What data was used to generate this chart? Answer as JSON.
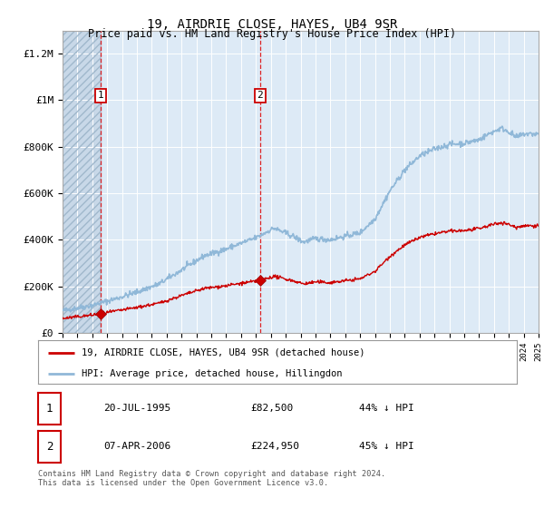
{
  "title": "19, AIRDRIE CLOSE, HAYES, UB4 9SR",
  "subtitle": "Price paid vs. HM Land Registry's House Price Index (HPI)",
  "ylim": [
    0,
    1300000
  ],
  "yticks": [
    0,
    200000,
    400000,
    600000,
    800000,
    1000000,
    1200000
  ],
  "ytick_labels": [
    "£0",
    "£200K",
    "£400K",
    "£600K",
    "£800K",
    "£1M",
    "£1.2M"
  ],
  "xmin": 1993,
  "xmax": 2025,
  "sale1_year": 1995.55,
  "sale1_price": 82500,
  "sale2_year": 2006.27,
  "sale2_price": 224950,
  "hpi_line_color": "#90b8d8",
  "sale_line_color": "#cc0000",
  "plot_bg_color": "#ddeaf6",
  "hatch_bg_color": "#c8d8e8",
  "legend_entries": [
    "19, AIRDRIE CLOSE, HAYES, UB4 9SR (detached house)",
    "HPI: Average price, detached house, Hillingdon"
  ],
  "table_rows": [
    {
      "num": "1",
      "date": "20-JUL-1995",
      "price": "£82,500",
      "hpi": "44% ↓ HPI"
    },
    {
      "num": "2",
      "date": "07-APR-2006",
      "price": "£224,950",
      "hpi": "45% ↓ HPI"
    }
  ],
  "footnote": "Contains HM Land Registry data © Crown copyright and database right 2024.\nThis data is licensed under the Open Government Licence v3.0.",
  "background_color": "#ffffff"
}
